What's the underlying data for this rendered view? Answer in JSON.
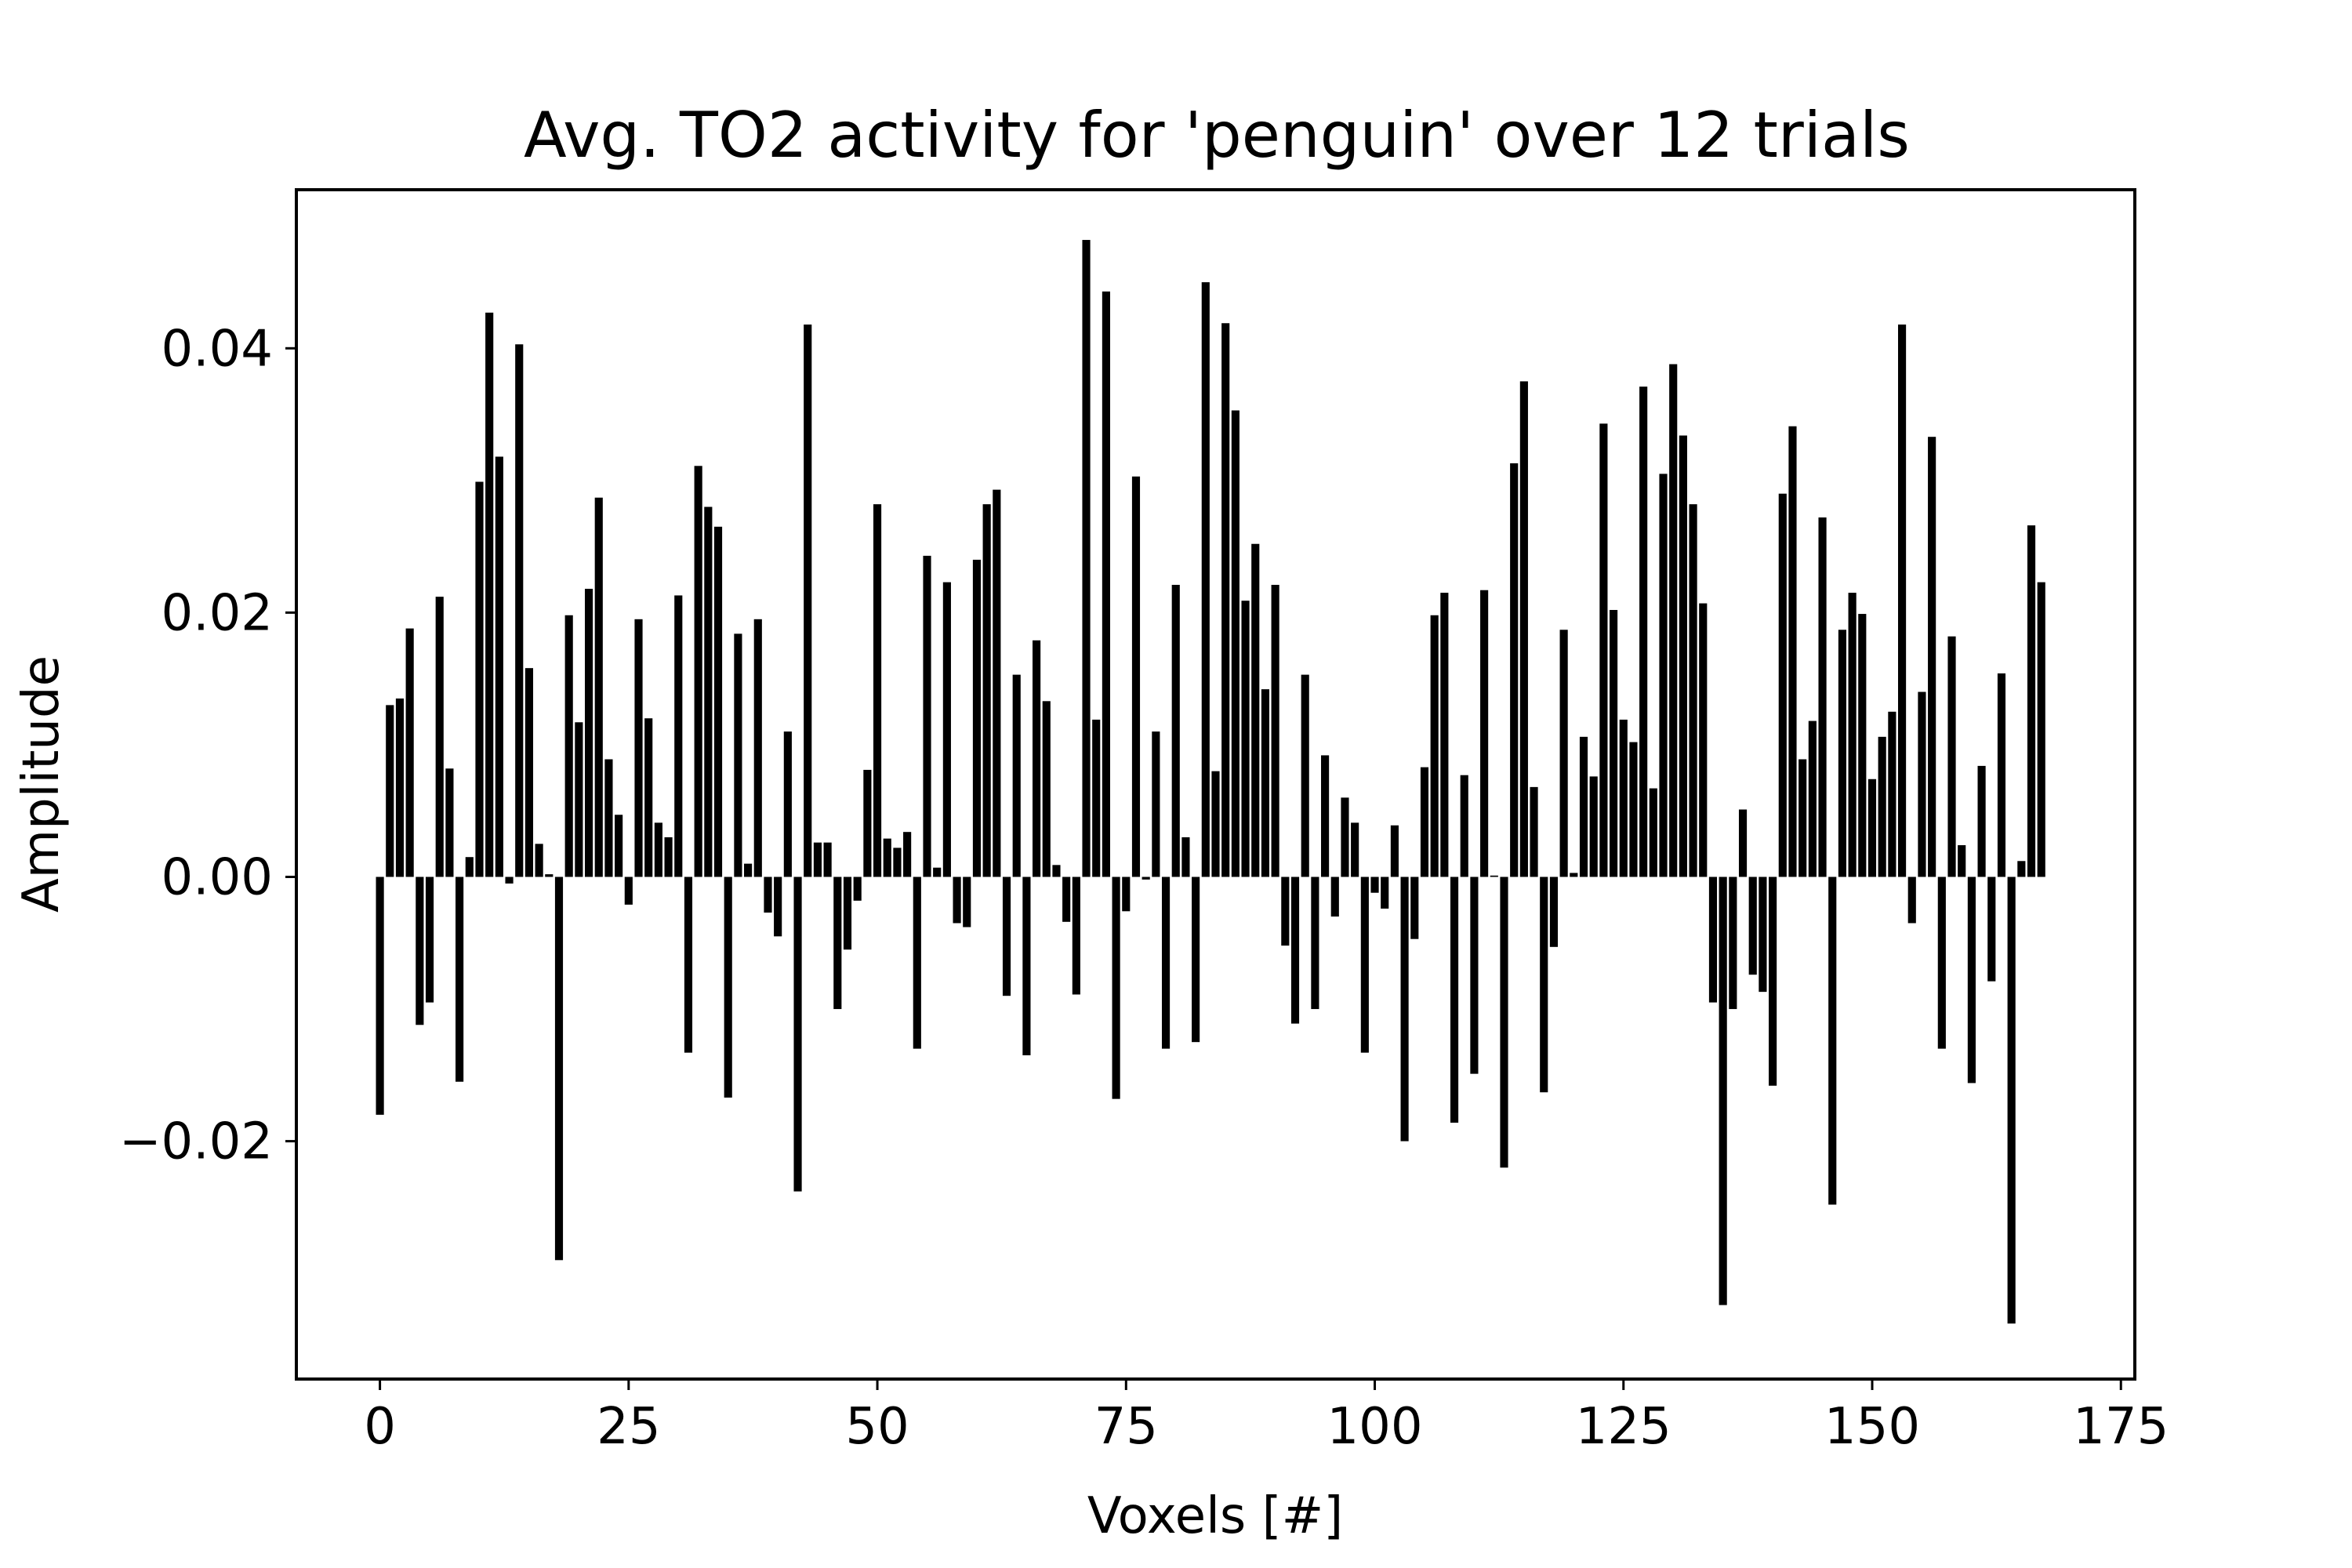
{
  "chart_data": {
    "type": "bar",
    "title": "Avg. TO2 activity for 'penguin' over 12 trials",
    "xlabel": "Voxels [#]",
    "ylabel": "Amplitude",
    "xlim": [
      -8.4,
      176.4
    ],
    "ylim": [
      -0.038,
      0.052
    ],
    "xticks": [
      0,
      25,
      50,
      75,
      100,
      125,
      150,
      175
    ],
    "xtick_labels": [
      "0",
      "25",
      "50",
      "75",
      "100",
      "125",
      "150",
      "175"
    ],
    "yticks": [
      -0.02,
      0.0,
      0.02,
      0.04
    ],
    "ytick_labels": [
      "−0.02",
      "0.00",
      "0.02",
      "0.04"
    ],
    "bar_color": "#000000",
    "grid": false,
    "x": [
      0,
      1,
      2,
      3,
      4,
      5,
      6,
      7,
      8,
      9,
      10,
      11,
      12,
      13,
      14,
      15,
      16,
      17,
      18,
      19,
      20,
      21,
      22,
      23,
      24,
      25,
      26,
      27,
      28,
      29,
      30,
      31,
      32,
      33,
      34,
      35,
      36,
      37,
      38,
      39,
      40,
      41,
      42,
      43,
      44,
      45,
      46,
      47,
      48,
      49,
      50,
      51,
      52,
      53,
      54,
      55,
      56,
      57,
      58,
      59,
      60,
      61,
      62,
      63,
      64,
      65,
      66,
      67,
      68,
      69,
      70,
      71,
      72,
      73,
      74,
      75,
      76,
      77,
      78,
      79,
      80,
      81,
      82,
      83,
      84,
      85,
      86,
      87,
      88,
      89,
      90,
      91,
      92,
      93,
      94,
      95,
      96,
      97,
      98,
      99,
      100,
      101,
      102,
      103,
      104,
      105,
      106,
      107,
      108,
      109,
      110,
      111,
      112,
      113,
      114,
      115,
      116,
      117,
      118,
      119,
      120,
      121,
      122,
      123,
      124,
      125,
      126,
      127,
      128,
      129,
      130,
      131,
      132,
      133,
      134,
      135,
      136,
      137,
      138,
      139,
      140,
      141,
      142,
      143,
      144,
      145,
      146,
      147,
      148,
      149,
      150,
      151,
      152,
      153,
      154,
      155,
      156,
      157,
      158,
      159,
      160,
      161,
      162,
      163,
      164,
      165,
      166,
      167
    ],
    "values": [
      -0.018,
      0.013,
      0.0135,
      0.0188,
      -0.0112,
      -0.0095,
      0.0212,
      0.0082,
      -0.0155,
      0.0015,
      0.0299,
      0.0427,
      0.0318,
      -0.0005,
      0.0403,
      0.0158,
      0.0025,
      0.0002,
      -0.029,
      0.0198,
      0.0117,
      0.0218,
      0.0287,
      0.0089,
      0.0047,
      -0.0021,
      0.0195,
      0.012,
      0.0041,
      0.003,
      0.0213,
      -0.0133,
      0.0311,
      0.028,
      0.0265,
      -0.0167,
      0.0184,
      0.001,
      0.0195,
      -0.0027,
      -0.0045,
      0.011,
      -0.0238,
      0.0418,
      0.0026,
      0.0026,
      -0.01,
      -0.0055,
      -0.0018,
      0.0081,
      0.0282,
      0.0029,
      0.0022,
      0.0034,
      -0.013,
      0.0243,
      0.0007,
      0.0223,
      -0.0035,
      -0.0038,
      0.024,
      0.0282,
      0.0293,
      -0.009,
      0.0153,
      -0.0135,
      0.0179,
      0.0133,
      0.0009,
      -0.0034,
      -0.0089,
      0.0482,
      0.0119,
      0.0443,
      -0.0168,
      -0.0026,
      0.0303,
      -0.0002,
      0.011,
      -0.013,
      0.0221,
      0.003,
      -0.0125,
      0.045,
      0.008,
      0.0419,
      0.0353,
      0.0209,
      0.0252,
      0.0142,
      0.0221,
      -0.0052,
      -0.0111,
      0.0153,
      -0.01,
      0.0092,
      -0.003,
      0.006,
      0.0041,
      -0.0133,
      -0.0012,
      -0.0024,
      0.0039,
      -0.02,
      -0.0047,
      0.0083,
      0.0198,
      0.0215,
      -0.0186,
      0.0077,
      -0.0149,
      0.0217,
      0.0001,
      -0.022,
      0.0313,
      0.0375,
      0.0068,
      -0.0163,
      -0.0053,
      0.0187,
      0.0003,
      0.0106,
      0.0076,
      0.0343,
      0.0202,
      0.0119,
      0.0102,
      0.0371,
      0.0067,
      0.0305,
      0.0388,
      0.0334,
      0.0282,
      0.0207,
      -0.0095,
      -0.0324,
      -0.01,
      0.0051,
      -0.0074,
      -0.0087,
      -0.0158,
      0.029,
      0.0341,
      0.0089,
      0.0118,
      0.0272,
      -0.0248,
      0.0187,
      0.0215,
      0.0199,
      0.0074,
      0.0106,
      0.0125,
      0.0418,
      -0.0035,
      0.014,
      0.0333,
      -0.013,
      0.0182,
      0.0024,
      -0.0156,
      0.0084,
      -0.0079,
      0.0154,
      -0.0338,
      0.0012,
      0.0266,
      0.0223
    ]
  }
}
